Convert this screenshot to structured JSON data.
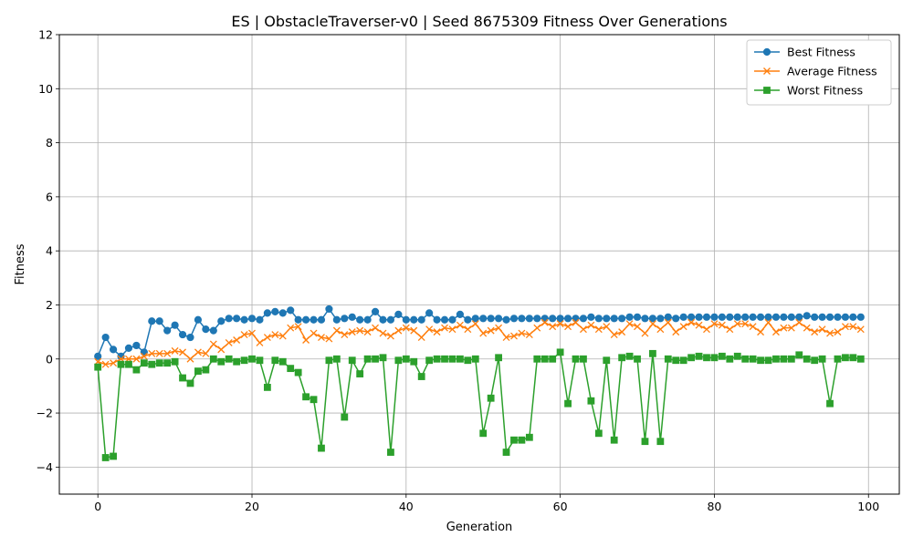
{
  "chart_data": {
    "type": "line",
    "title": "ES | ObstacleTraverser-v0 | Seed 8675309 Fitness Over Generations",
    "xlabel": "Generation",
    "ylabel": "Fitness",
    "xlim": [
      -5,
      104
    ],
    "ylim": [
      -5,
      12
    ],
    "xticks": [
      0,
      20,
      40,
      60,
      80,
      100
    ],
    "yticks": [
      -4,
      -2,
      0,
      2,
      4,
      6,
      8,
      10,
      12
    ],
    "ytick_labels": [
      "−4",
      "−2",
      "0",
      "2",
      "4",
      "6",
      "8",
      "10",
      "12"
    ],
    "xtick_labels": [
      "0",
      "20",
      "40",
      "60",
      "80",
      "100"
    ],
    "grid": true,
    "legend_position": "top-right",
    "x": [
      0,
      1,
      2,
      3,
      4,
      5,
      6,
      7,
      8,
      9,
      10,
      11,
      12,
      13,
      14,
      15,
      16,
      17,
      18,
      19,
      20,
      21,
      22,
      23,
      24,
      25,
      26,
      27,
      28,
      29,
      30,
      31,
      32,
      33,
      34,
      35,
      36,
      37,
      38,
      39,
      40,
      41,
      42,
      43,
      44,
      45,
      46,
      47,
      48,
      49,
      50,
      51,
      52,
      53,
      54,
      55,
      56,
      57,
      58,
      59,
      60,
      61,
      62,
      63,
      64,
      65,
      66,
      67,
      68,
      69,
      70,
      71,
      72,
      73,
      74,
      75,
      76,
      77,
      78,
      79,
      80,
      81,
      82,
      83,
      84,
      85,
      86,
      87,
      88,
      89,
      90,
      91,
      92,
      93,
      94,
      95,
      96,
      97,
      98,
      99
    ],
    "series": [
      {
        "name": "Best Fitness",
        "color": "#1f77b4",
        "marker": "circle",
        "values": [
          0.1,
          0.8,
          0.35,
          0.1,
          0.4,
          0.5,
          0.25,
          1.4,
          1.4,
          1.05,
          1.25,
          0.9,
          0.8,
          1.45,
          1.1,
          1.05,
          1.4,
          1.5,
          1.5,
          1.45,
          1.5,
          1.45,
          1.7,
          1.75,
          1.7,
          1.8,
          1.45,
          1.45,
          1.45,
          1.45,
          1.85,
          1.45,
          1.5,
          1.55,
          1.45,
          1.45,
          1.75,
          1.45,
          1.45,
          1.65,
          1.45,
          1.45,
          1.45,
          1.7,
          1.45,
          1.45,
          1.45,
          1.65,
          1.45,
          1.5,
          1.5,
          1.5,
          1.5,
          1.45,
          1.5,
          1.5,
          1.5,
          1.5,
          1.5,
          1.5,
          1.5,
          1.5,
          1.5,
          1.5,
          1.55,
          1.5,
          1.5,
          1.5,
          1.5,
          1.55,
          1.55,
          1.5,
          1.5,
          1.5,
          1.55,
          1.5,
          1.55,
          1.55,
          1.55,
          1.55,
          1.55,
          1.55,
          1.55,
          1.55,
          1.55,
          1.55,
          1.55,
          1.55,
          1.55,
          1.55,
          1.55,
          1.55,
          1.6,
          1.55,
          1.55,
          1.55,
          1.55,
          1.55,
          1.55,
          1.55
        ]
      },
      {
        "name": "Average Fitness",
        "color": "#ff7f0e",
        "marker": "x",
        "values": [
          -0.1,
          -0.2,
          -0.15,
          0.0,
          0.0,
          0.0,
          0.1,
          0.2,
          0.2,
          0.2,
          0.3,
          0.25,
          0.0,
          0.25,
          0.2,
          0.55,
          0.35,
          0.6,
          0.7,
          0.9,
          0.95,
          0.6,
          0.8,
          0.9,
          0.85,
          1.15,
          1.2,
          0.7,
          0.95,
          0.8,
          0.75,
          1.05,
          0.9,
          1.0,
          1.05,
          1.0,
          1.15,
          0.95,
          0.85,
          1.05,
          1.15,
          1.05,
          0.8,
          1.1,
          1.0,
          1.15,
          1.1,
          1.25,
          1.1,
          1.3,
          0.95,
          1.05,
          1.15,
          0.8,
          0.85,
          0.95,
          0.9,
          1.15,
          1.35,
          1.2,
          1.3,
          1.2,
          1.35,
          1.1,
          1.25,
          1.1,
          1.2,
          0.9,
          1.0,
          1.3,
          1.2,
          0.95,
          1.3,
          1.1,
          1.35,
          1.0,
          1.2,
          1.35,
          1.25,
          1.1,
          1.3,
          1.25,
          1.1,
          1.3,
          1.3,
          1.2,
          1.0,
          1.35,
          1.0,
          1.15,
          1.15,
          1.35,
          1.15,
          1.0,
          1.1,
          0.95,
          1.0,
          1.2,
          1.2,
          1.1
        ]
      },
      {
        "name": "Worst Fitness",
        "color": "#2ca02c",
        "marker": "square",
        "values": [
          -0.3,
          -3.65,
          -3.6,
          -0.2,
          -0.2,
          -0.4,
          -0.15,
          -0.2,
          -0.15,
          -0.15,
          -0.1,
          -0.7,
          -0.9,
          -0.45,
          -0.4,
          0.0,
          -0.1,
          0.0,
          -0.1,
          -0.05,
          0.0,
          -0.05,
          -1.05,
          -0.05,
          -0.1,
          -0.35,
          -0.5,
          -1.4,
          -1.5,
          -3.3,
          -0.05,
          0.0,
          -2.15,
          -0.05,
          -0.55,
          0.0,
          0.0,
          0.05,
          -3.45,
          -0.05,
          0.0,
          -0.1,
          -0.65,
          -0.05,
          0.0,
          0.0,
          0.0,
          0.0,
          -0.05,
          0.0,
          -2.75,
          -1.45,
          0.05,
          -3.45,
          -3.0,
          -3.0,
          -2.9,
          0.0,
          0.0,
          0.0,
          0.25,
          -1.65,
          0.0,
          0.0,
          -1.55,
          -2.75,
          -0.05,
          -3.0,
          0.05,
          0.1,
          0.0,
          -3.05,
          0.2,
          -3.05,
          0.0,
          -0.05,
          -0.05,
          0.05,
          0.1,
          0.05,
          0.05,
          0.1,
          0.0,
          0.1,
          0.0,
          0.0,
          -0.05,
          -0.05,
          0.0,
          0.0,
          0.0,
          0.15,
          0.0,
          -0.05,
          0.0,
          -1.65,
          0.0,
          0.05,
          0.05,
          0.0
        ]
      }
    ]
  }
}
